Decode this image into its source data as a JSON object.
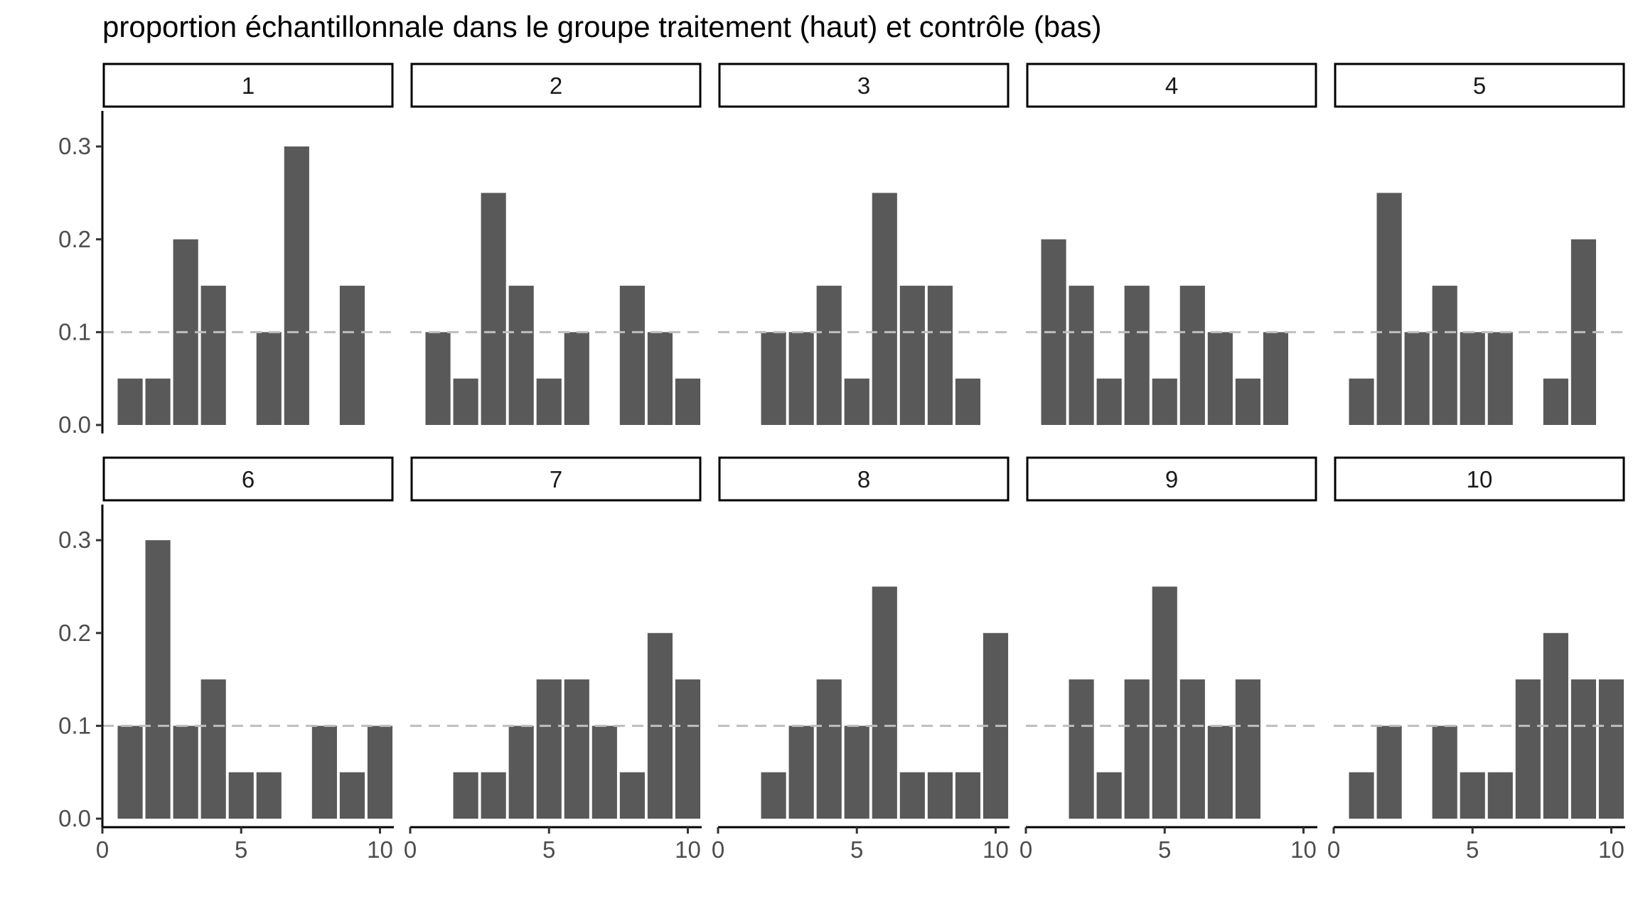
{
  "chart_data": {
    "type": "bar",
    "title": "proportion échantillonnale dans le groupe traitement (haut) et contrôle (bas)",
    "xlabel": "",
    "ylabel": "",
    "xlim": [
      0,
      10.5
    ],
    "ylim": [
      0,
      0.32
    ],
    "x_ticks": [
      "0",
      "5",
      "10"
    ],
    "x_tick_values": [
      0,
      5,
      10
    ],
    "y_ticks": [
      "0.0",
      "0.1",
      "0.2",
      "0.3"
    ],
    "y_tick_values": [
      0,
      0.1,
      0.2,
      0.3
    ],
    "reference_line": {
      "y": 0.1,
      "style": "dashed",
      "color": "#bebebe"
    },
    "bar_color": "#595959",
    "grid": false,
    "x": [
      1,
      2,
      3,
      4,
      5,
      6,
      7,
      8,
      9,
      10
    ],
    "panels": [
      {
        "label": "1",
        "values": [
          0.05,
          0.05,
          0.2,
          0.15,
          0.0,
          0.1,
          0.3,
          0.0,
          0.15,
          0.0
        ]
      },
      {
        "label": "2",
        "values": [
          0.1,
          0.05,
          0.25,
          0.15,
          0.05,
          0.1,
          0.0,
          0.15,
          0.1,
          0.05
        ]
      },
      {
        "label": "3",
        "values": [
          0.0,
          0.1,
          0.1,
          0.15,
          0.05,
          0.25,
          0.15,
          0.15,
          0.05,
          0.0
        ]
      },
      {
        "label": "4",
        "values": [
          0.2,
          0.15,
          0.05,
          0.15,
          0.05,
          0.15,
          0.1,
          0.05,
          0.1,
          0.0
        ]
      },
      {
        "label": "5",
        "values": [
          0.05,
          0.25,
          0.1,
          0.15,
          0.1,
          0.1,
          0.0,
          0.05,
          0.2,
          0.0
        ]
      },
      {
        "label": "6",
        "values": [
          0.1,
          0.3,
          0.1,
          0.15,
          0.05,
          0.05,
          0.0,
          0.1,
          0.05,
          0.1
        ]
      },
      {
        "label": "7",
        "values": [
          0.0,
          0.05,
          0.05,
          0.1,
          0.15,
          0.15,
          0.1,
          0.05,
          0.2,
          0.15
        ]
      },
      {
        "label": "8",
        "values": [
          0.0,
          0.05,
          0.1,
          0.15,
          0.1,
          0.25,
          0.05,
          0.05,
          0.05,
          0.2
        ]
      },
      {
        "label": "9",
        "values": [
          0.0,
          0.15,
          0.05,
          0.15,
          0.25,
          0.15,
          0.1,
          0.15,
          0.0,
          0.0
        ]
      },
      {
        "label": "10",
        "values": [
          0.05,
          0.1,
          0.0,
          0.1,
          0.05,
          0.05,
          0.15,
          0.2,
          0.15,
          0.15
        ]
      }
    ]
  }
}
